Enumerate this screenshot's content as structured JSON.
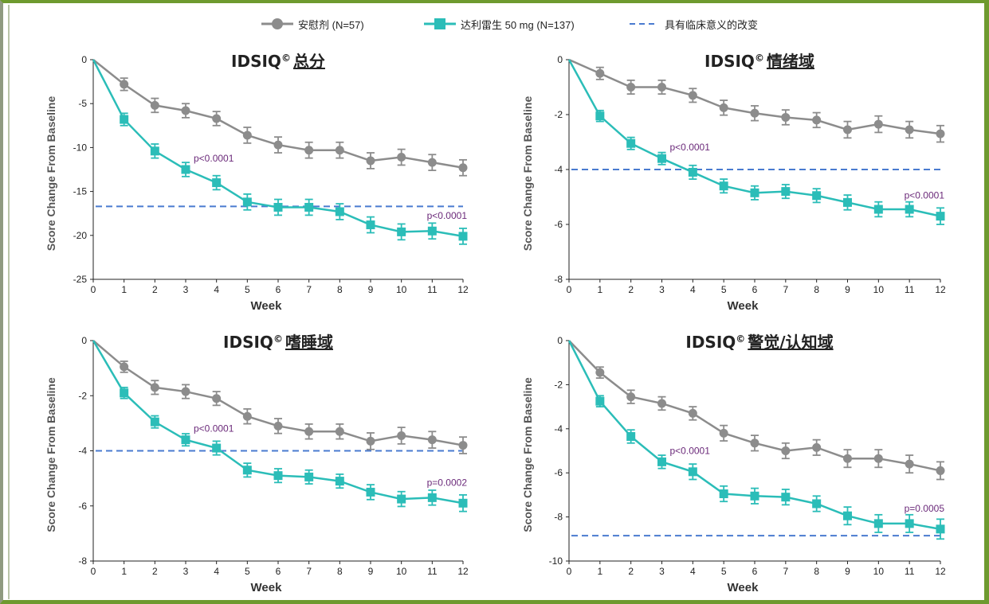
{
  "legend": [
    {
      "label": "安慰剂 (N=57)",
      "color": "#8c8c8c",
      "marker": "circle"
    },
    {
      "label": "达利雷生 50 mg (N=137)",
      "color": "#2bbdb8",
      "marker": "square"
    },
    {
      "label": "具有临床意义的改变",
      "color": "#4a7bd0",
      "marker": "dashed-line"
    }
  ],
  "colors": {
    "placebo": "#8c8c8c",
    "drug": "#2bbdb8",
    "mcid": "#4a7bd0",
    "pvalue": "#6b2a7a",
    "frame": "#6e9a2f"
  },
  "chart_data": [
    {
      "type": "line",
      "title_prefix": "IDSIQ",
      "title_mark": "©",
      "title_suffix": "总分",
      "xlabel": "Week",
      "ylabel": "Score Change From Baseline",
      "x": [
        0,
        1,
        2,
        3,
        4,
        5,
        6,
        7,
        8,
        9,
        10,
        11,
        12
      ],
      "ylim": [
        -25,
        0
      ],
      "yticks": [
        0,
        -5,
        -10,
        -15,
        -20,
        -25
      ],
      "series": [
        {
          "key": "placebo",
          "values": [
            0,
            -2.8,
            -5.2,
            -5.8,
            -6.7,
            -8.6,
            -9.7,
            -10.3,
            -10.3,
            -11.5,
            -11.1,
            -11.7,
            -12.3
          ],
          "err": [
            0,
            0.7,
            0.8,
            0.8,
            0.8,
            0.9,
            0.9,
            0.9,
            0.9,
            0.9,
            0.9,
            0.9,
            0.9
          ]
        },
        {
          "key": "drug",
          "values": [
            0,
            -6.8,
            -10.4,
            -12.5,
            -14.0,
            -16.2,
            -16.8,
            -16.8,
            -17.3,
            -18.8,
            -19.6,
            -19.5,
            -20.1
          ],
          "err": [
            0,
            0.7,
            0.8,
            0.8,
            0.8,
            0.9,
            0.9,
            0.9,
            0.9,
            0.9,
            0.9,
            0.9,
            0.9
          ]
        }
      ],
      "mcid": -16.7,
      "annotations": [
        {
          "text": "p<0.0001",
          "x": 3,
          "y": -12.5
        },
        {
          "text": "p<0.0001",
          "x": 12,
          "y": -20.1
        }
      ]
    },
    {
      "type": "line",
      "title_prefix": "IDSIQ",
      "title_mark": "©",
      "title_suffix": "情绪域",
      "xlabel": "Week",
      "ylabel": "Score Change From Baseline",
      "x": [
        0,
        1,
        2,
        3,
        4,
        5,
        6,
        7,
        8,
        9,
        10,
        11,
        12
      ],
      "ylim": [
        -8,
        0
      ],
      "yticks": [
        0,
        -2,
        -4,
        -6,
        -8
      ],
      "series": [
        {
          "key": "placebo",
          "values": [
            0,
            -0.5,
            -1.0,
            -1.0,
            -1.3,
            -1.75,
            -1.95,
            -2.1,
            -2.2,
            -2.55,
            -2.35,
            -2.55,
            -2.7
          ],
          "err": [
            0,
            0.22,
            0.25,
            0.25,
            0.25,
            0.27,
            0.27,
            0.27,
            0.27,
            0.3,
            0.3,
            0.3,
            0.3
          ]
        },
        {
          "key": "drug",
          "values": [
            0,
            -2.05,
            -3.05,
            -3.6,
            -4.1,
            -4.6,
            -4.85,
            -4.8,
            -4.95,
            -5.2,
            -5.45,
            -5.45,
            -5.7
          ],
          "err": [
            0,
            0.2,
            0.22,
            0.22,
            0.25,
            0.25,
            0.25,
            0.25,
            0.25,
            0.27,
            0.27,
            0.27,
            0.3
          ]
        }
      ],
      "mcid": -4.0,
      "annotations": [
        {
          "text": "p<0.0001",
          "x": 3,
          "y": -3.6
        },
        {
          "text": "p<0.0001",
          "x": 12,
          "y": -5.7
        }
      ]
    },
    {
      "type": "line",
      "title_prefix": "IDSIQ",
      "title_mark": "©",
      "title_suffix": "嗜睡域",
      "xlabel": "Week",
      "ylabel": "Score Change From Baseline",
      "x": [
        0,
        1,
        2,
        3,
        4,
        5,
        6,
        7,
        8,
        9,
        10,
        11,
        12
      ],
      "ylim": [
        -8,
        0
      ],
      "yticks": [
        0,
        -2,
        -4,
        -6,
        -8
      ],
      "series": [
        {
          "key": "placebo",
          "values": [
            0,
            -0.95,
            -1.7,
            -1.85,
            -2.1,
            -2.75,
            -3.1,
            -3.3,
            -3.3,
            -3.65,
            -3.45,
            -3.6,
            -3.8
          ],
          "err": [
            0,
            0.2,
            0.25,
            0.25,
            0.25,
            0.27,
            0.27,
            0.27,
            0.27,
            0.3,
            0.3,
            0.3,
            0.3
          ]
        },
        {
          "key": "drug",
          "values": [
            0,
            -1.9,
            -2.95,
            -3.6,
            -3.9,
            -4.7,
            -4.9,
            -4.95,
            -5.1,
            -5.5,
            -5.75,
            -5.7,
            -5.9
          ],
          "err": [
            0,
            0.2,
            0.22,
            0.22,
            0.25,
            0.25,
            0.25,
            0.25,
            0.25,
            0.27,
            0.27,
            0.27,
            0.3
          ]
        }
      ],
      "mcid": -4.0,
      "annotations": [
        {
          "text": "p<0.0001",
          "x": 3,
          "y": -3.6
        },
        {
          "text": "p=0.0002",
          "x": 12,
          "y": -5.9
        }
      ]
    },
    {
      "type": "line",
      "title_prefix": "IDSIQ",
      "title_mark": "©",
      "title_suffix": "警觉/认知域",
      "xlabel": "Week",
      "ylabel": "Score Change From Baseline",
      "x": [
        0,
        1,
        2,
        3,
        4,
        5,
        6,
        7,
        8,
        9,
        10,
        11,
        12
      ],
      "ylim": [
        -10,
        0
      ],
      "yticks": [
        0,
        -2,
        -4,
        -6,
        -8,
        -10
      ],
      "series": [
        {
          "key": "placebo",
          "values": [
            0,
            -1.45,
            -2.55,
            -2.85,
            -3.3,
            -4.2,
            -4.65,
            -5.0,
            -4.85,
            -5.35,
            -5.35,
            -5.6,
            -5.9
          ],
          "err": [
            0,
            0.25,
            0.3,
            0.3,
            0.3,
            0.35,
            0.35,
            0.35,
            0.35,
            0.4,
            0.4,
            0.4,
            0.4
          ]
        },
        {
          "key": "drug",
          "values": [
            0,
            -2.75,
            -4.35,
            -5.5,
            -5.95,
            -6.95,
            -7.05,
            -7.1,
            -7.4,
            -7.95,
            -8.3,
            -8.3,
            -8.55
          ],
          "err": [
            0,
            0.25,
            0.3,
            0.3,
            0.35,
            0.35,
            0.35,
            0.35,
            0.35,
            0.4,
            0.4,
            0.4,
            0.45
          ]
        }
      ],
      "mcid": -8.85,
      "annotations": [
        {
          "text": "p<0.0001",
          "x": 3,
          "y": -5.5
        },
        {
          "text": "p=0.0005",
          "x": 12,
          "y": -8.55
        }
      ]
    }
  ]
}
